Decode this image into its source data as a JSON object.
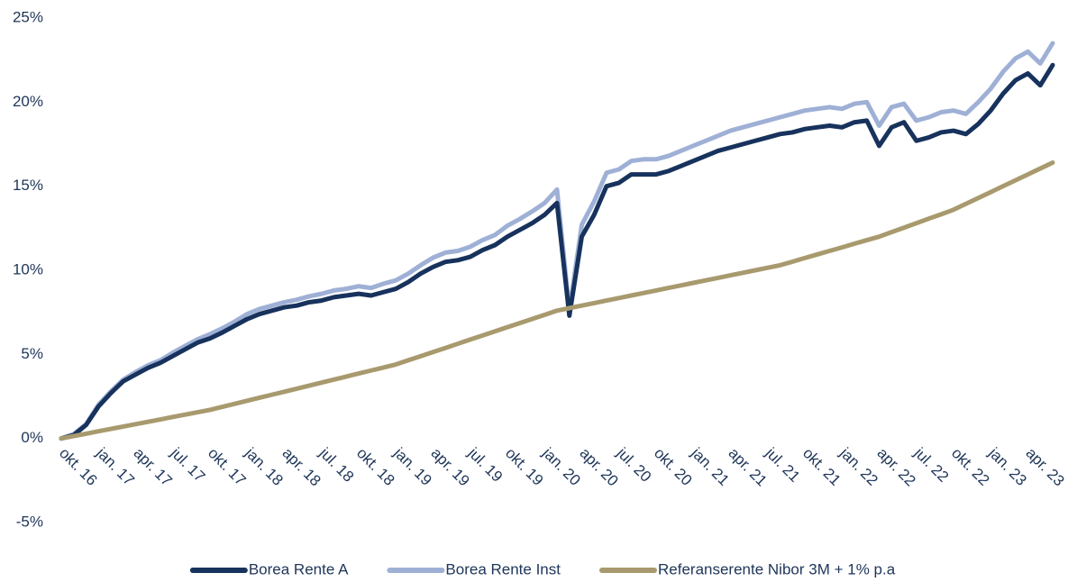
{
  "chart_data": {
    "type": "line",
    "categories": [
      "okt. 16",
      null,
      null,
      "jan. 17",
      null,
      null,
      "apr. 17",
      null,
      null,
      "jul. 17",
      null,
      null,
      "okt. 17",
      null,
      null,
      "jan. 18",
      null,
      null,
      "apr. 18",
      null,
      null,
      "jul. 18",
      null,
      null,
      "okt. 18",
      null,
      null,
      "jan. 19",
      null,
      null,
      "apr. 19",
      null,
      null,
      "jul. 19",
      null,
      null,
      "okt. 19",
      null,
      null,
      "jan. 20",
      null,
      null,
      "apr. 20",
      null,
      null,
      "jul. 20",
      null,
      null,
      "okt. 20",
      null,
      null,
      "jan. 21",
      null,
      null,
      "apr. 21",
      null,
      null,
      "jul. 21",
      null,
      null,
      "okt. 21",
      null,
      null,
      "jan. 22",
      null,
      null,
      "apr. 22",
      null,
      null,
      "jul. 22",
      null,
      null,
      "okt. 22",
      null,
      null,
      "jan. 23",
      null,
      null,
      "apr. 23",
      null,
      null
    ],
    "series": [
      {
        "name": "Borea Rente A",
        "color": "#17325c",
        "values": [
          0,
          0.2,
          0.8,
          1.9,
          2.7,
          3.4,
          3.8,
          4.2,
          4.5,
          4.9,
          5.3,
          5.7,
          5.95,
          6.3,
          6.7,
          7.1,
          7.4,
          7.6,
          7.8,
          7.9,
          8.1,
          8.2,
          8.4,
          8.5,
          8.6,
          8.5,
          8.7,
          8.9,
          9.3,
          9.8,
          10.2,
          10.5,
          10.6,
          10.8,
          11.2,
          11.5,
          12.0,
          12.4,
          12.8,
          13.3,
          14.0,
          7.3,
          12.0,
          13.3,
          15.0,
          15.2,
          15.7,
          15.7,
          15.7,
          15.9,
          16.2,
          16.5,
          16.8,
          17.1,
          17.3,
          17.5,
          17.7,
          17.9,
          18.1,
          18.2,
          18.4,
          18.5,
          18.6,
          18.5,
          18.8,
          18.9,
          17.4,
          18.5,
          18.8,
          17.7,
          17.9,
          18.2,
          18.3,
          18.1,
          18.7,
          19.5,
          20.5,
          21.3,
          21.7,
          21.0,
          22.2
        ]
      },
      {
        "name": "Borea Rente Inst",
        "color": "#9fb0d6",
        "values": [
          0,
          0.25,
          0.85,
          2.0,
          2.8,
          3.5,
          3.95,
          4.35,
          4.65,
          5.1,
          5.5,
          5.9,
          6.2,
          6.55,
          6.95,
          7.4,
          7.7,
          7.9,
          8.1,
          8.25,
          8.45,
          8.6,
          8.8,
          8.9,
          9.05,
          8.95,
          9.2,
          9.4,
          9.8,
          10.3,
          10.75,
          11.05,
          11.15,
          11.4,
          11.8,
          12.1,
          12.65,
          13.05,
          13.5,
          14.0,
          14.8,
          7.6,
          12.7,
          14.1,
          15.8,
          16.0,
          16.5,
          16.6,
          16.6,
          16.8,
          17.1,
          17.4,
          17.7,
          18.0,
          18.3,
          18.5,
          18.7,
          18.9,
          19.1,
          19.3,
          19.5,
          19.6,
          19.7,
          19.6,
          19.9,
          20.0,
          18.6,
          19.7,
          19.9,
          18.9,
          19.1,
          19.4,
          19.5,
          19.3,
          20.0,
          20.8,
          21.8,
          22.6,
          23.0,
          22.3,
          23.5
        ]
      },
      {
        "name": "Referanserente Nibor 3M + 1% p.a",
        "color": "#a89a6e",
        "values": [
          0,
          0.14,
          0.28,
          0.43,
          0.57,
          0.71,
          0.85,
          0.99,
          1.13,
          1.28,
          1.42,
          1.56,
          1.7,
          1.88,
          2.06,
          2.24,
          2.42,
          2.6,
          2.78,
          2.96,
          3.14,
          3.32,
          3.5,
          3.68,
          3.86,
          4.04,
          4.22,
          4.4,
          4.65,
          4.89,
          5.14,
          5.38,
          5.63,
          5.88,
          6.12,
          6.37,
          6.62,
          6.86,
          7.11,
          7.35,
          7.6,
          7.75,
          7.9,
          8.05,
          8.2,
          8.35,
          8.5,
          8.65,
          8.8,
          8.95,
          9.1,
          9.25,
          9.4,
          9.55,
          9.7,
          9.85,
          10.0,
          10.15,
          10.3,
          10.51,
          10.73,
          10.94,
          11.15,
          11.36,
          11.58,
          11.79,
          12.0,
          12.27,
          12.53,
          12.8,
          13.07,
          13.33,
          13.6,
          13.95,
          14.3,
          14.65,
          15.0,
          15.35,
          15.7,
          16.05,
          16.4
        ]
      }
    ],
    "ylim": [
      -5,
      25
    ],
    "yticks": [
      {
        "value": -5,
        "label": "-5%"
      },
      {
        "value": 0,
        "label": "0%"
      },
      {
        "value": 5,
        "label": "5%"
      },
      {
        "value": 10,
        "label": "10%"
      },
      {
        "value": 15,
        "label": "15%"
      },
      {
        "value": 20,
        "label": "20%"
      },
      {
        "value": 25,
        "label": "25%"
      }
    ],
    "grid": false,
    "legend": "bottom"
  }
}
